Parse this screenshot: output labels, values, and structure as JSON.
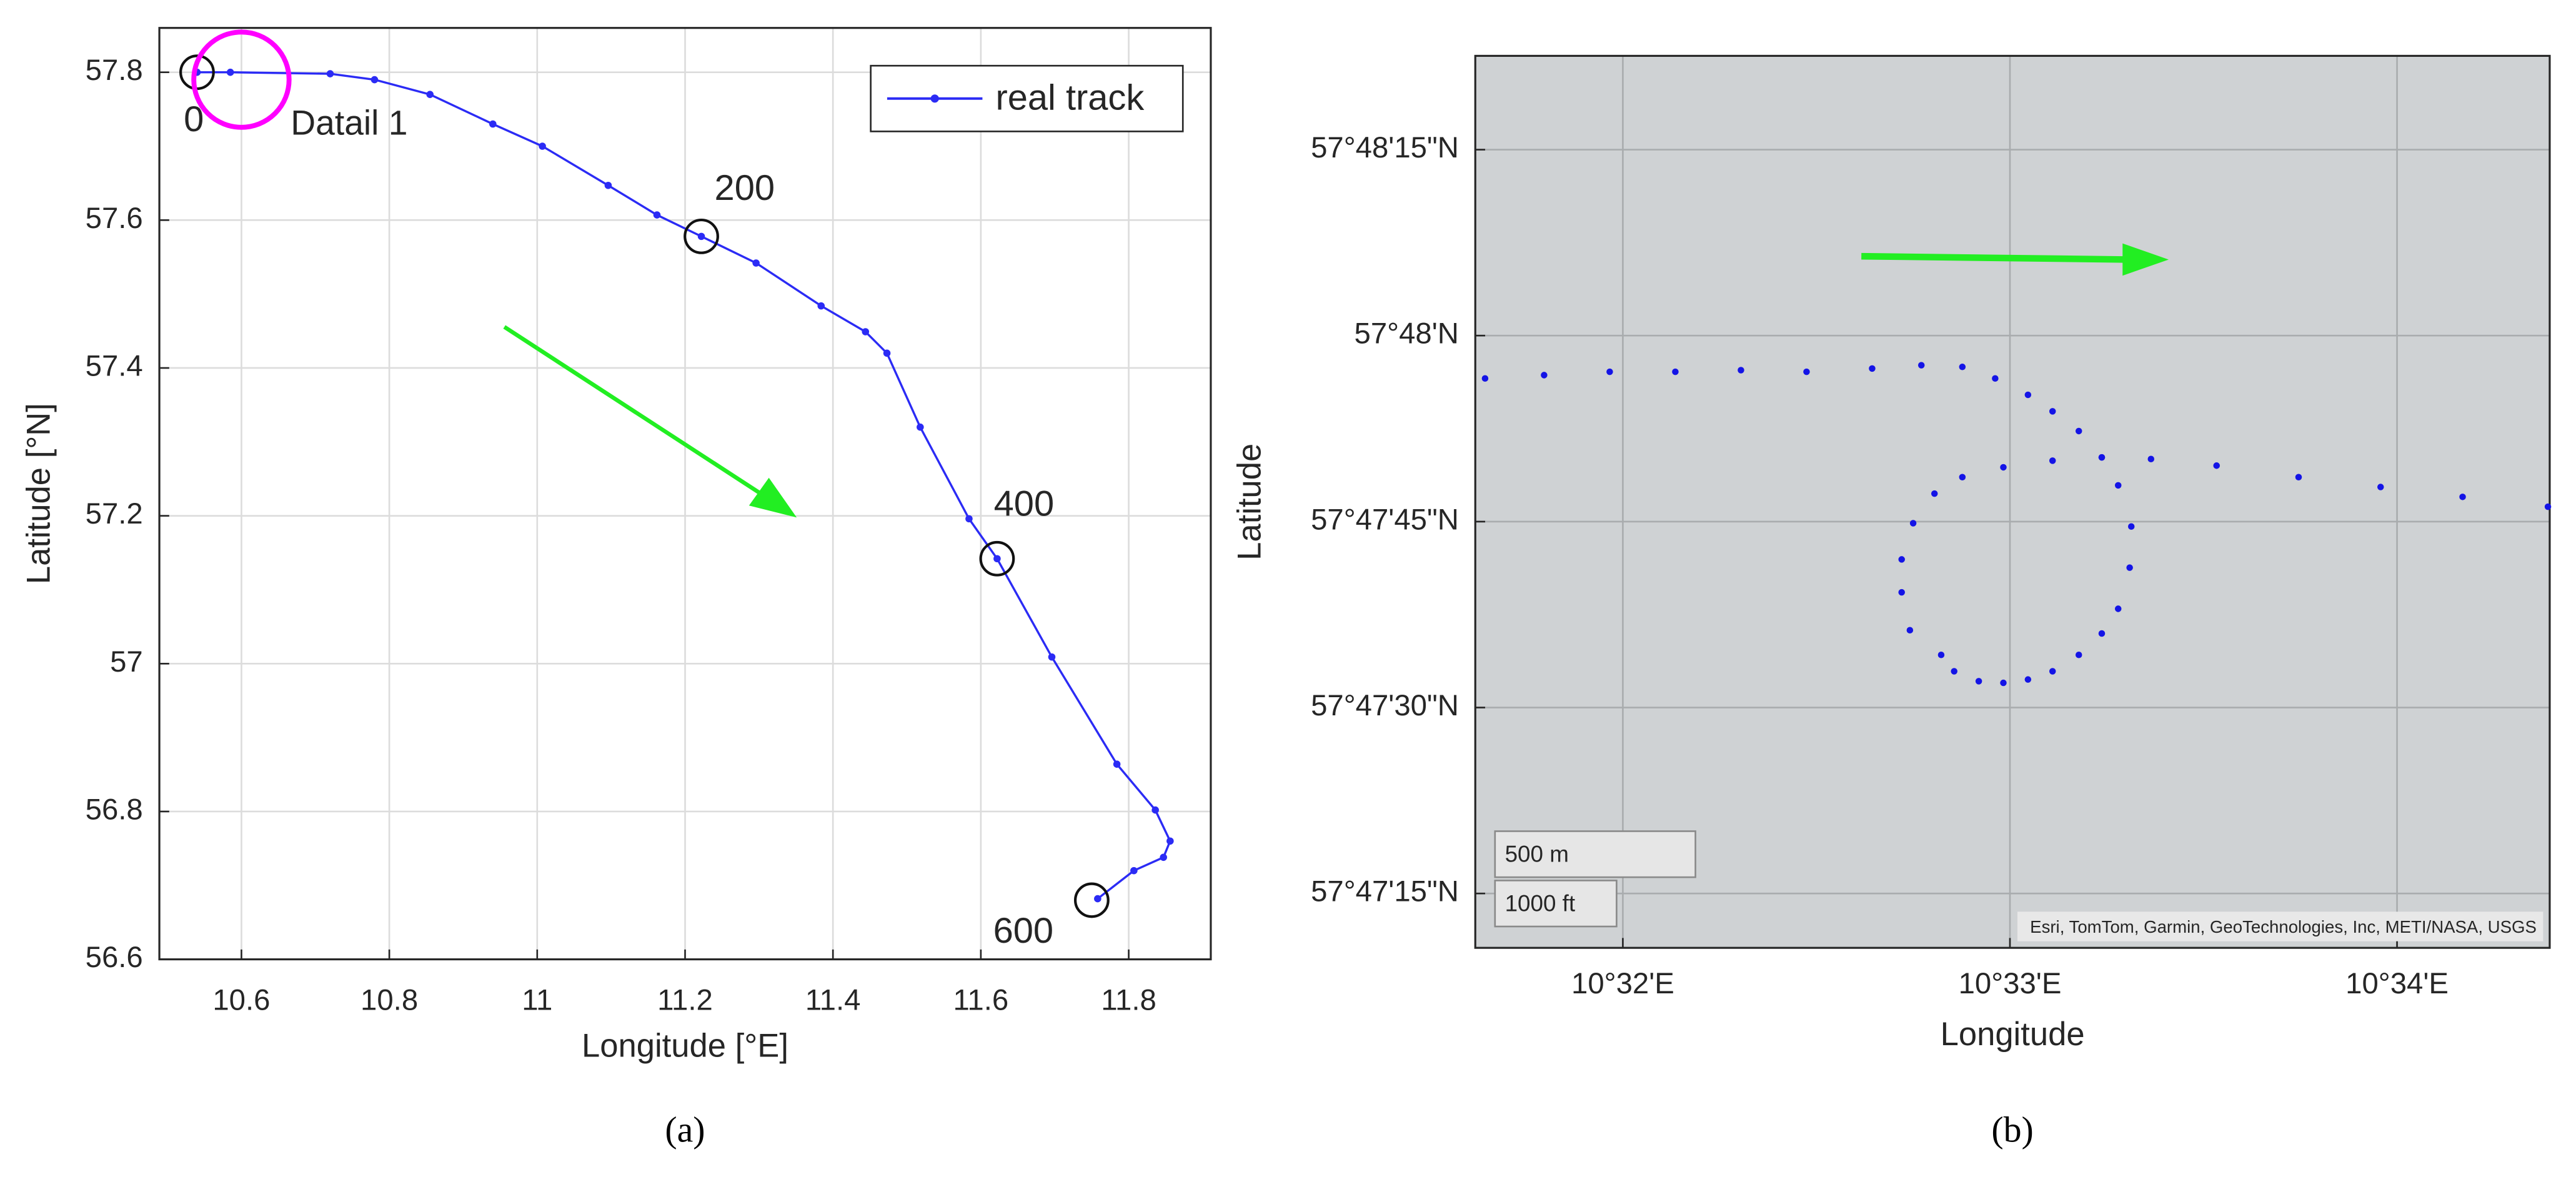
{
  "chart_data": [
    {
      "type": "line",
      "caption": "(a)",
      "xlabel": "Longitude [°E]",
      "ylabel": "Latitude [°N]",
      "xlim": [
        10.489,
        11.911
      ],
      "ylim": [
        56.6,
        57.86
      ],
      "xticks": [
        10.6,
        10.8,
        11,
        11.2,
        11.4,
        11.6,
        11.8
      ],
      "yticks": [
        56.6,
        56.8,
        57,
        57.2,
        57.4,
        57.6,
        57.8
      ],
      "grid": true,
      "background": "#ffffff",
      "legend": "upper right",
      "series": [
        {
          "name": "real track",
          "color": "#2b2bf5",
          "x": [
            10.54,
            10.585,
            10.72,
            10.78,
            10.855,
            10.94,
            11.007,
            11.096,
            11.162,
            11.222,
            11.296,
            11.384,
            11.444,
            11.473,
            11.518,
            11.584,
            11.622,
            11.696,
            11.784,
            11.836,
            11.856,
            11.847,
            11.807,
            11.758
          ],
          "y": [
            57.8,
            57.8,
            57.798,
            57.79,
            57.77,
            57.73,
            57.7,
            57.647,
            57.607,
            57.578,
            57.542,
            57.484,
            57.449,
            57.42,
            57.32,
            57.196,
            57.142,
            57.009,
            56.864,
            56.802,
            56.76,
            56.738,
            56.72,
            56.682
          ]
        }
      ],
      "annotations": [
        {
          "text": "0",
          "x": 10.54,
          "y": 57.8
        },
        {
          "text": "200",
          "x": 11.222,
          "y": 57.578
        },
        {
          "text": "400",
          "x": 11.622,
          "y": 57.142
        },
        {
          "text": "600",
          "x": 11.75,
          "y": 56.68
        }
      ],
      "highlight": {
        "text": "Datail 1",
        "x": 10.6,
        "y": 57.79,
        "color": "#ff00ff"
      }
    },
    {
      "type": "scatter",
      "caption": "(b)",
      "xlabel": "Longitude",
      "ylabel": "Latitude",
      "xlim": [
        10.52698,
        10.57324
      ],
      "ylim": [
        57.786283,
        57.806268
      ],
      "xticks": [
        {
          "value": 10.5333333,
          "label": "10°32'E"
        },
        {
          "value": 10.55,
          "label": "10°33'E"
        },
        {
          "value": 10.5666667,
          "label": "10°34'E"
        }
      ],
      "yticks": [
        {
          "value": 57.7875,
          "label": "57°47'15\"N"
        },
        {
          "value": 57.7916667,
          "label": "57°47'30\"N"
        },
        {
          "value": 57.7958333,
          "label": "57°47'45\"N"
        },
        {
          "value": 57.8,
          "label": "57°48'N"
        },
        {
          "value": 57.8041667,
          "label": "57°48'15\"N"
        }
      ],
      "grid": true,
      "background": "#cfd2d4",
      "color": "#1414e6",
      "x": [
        10.527401,
        10.529943,
        10.532768,
        10.535593,
        10.538418,
        10.541243,
        10.544067,
        10.546186,
        10.547951,
        10.549364,
        10.550776,
        10.551835,
        10.552965,
        10.553954,
        10.55466,
        10.555225,
        10.555155,
        10.55466,
        10.553954,
        10.552965,
        10.551835,
        10.550776,
        10.549717,
        10.548658,
        10.547598,
        10.547039,
        10.545692,
        10.545338,
        10.545338,
        10.545833,
        10.546751,
        10.547951,
        10.549717,
        10.551835,
        10.553954,
        10.556073,
        10.558897,
        10.562428,
        10.565959,
        10.56949,
        10.573163
      ],
      "y": [
        57.799041,
        57.799115,
        57.799189,
        57.799189,
        57.799226,
        57.799189,
        57.799263,
        57.799336,
        57.799299,
        57.799041,
        57.798673,
        57.798304,
        57.797862,
        57.797272,
        57.796645,
        57.795723,
        57.794801,
        57.79388,
        57.793326,
        57.792847,
        57.792479,
        57.792295,
        57.79222,
        57.792257,
        57.792479,
        57.792847,
        57.7934,
        57.794248,
        57.794986,
        57.795797,
        57.79646,
        57.796829,
        57.79705,
        57.797198,
        57.797272,
        57.797235,
        57.797087,
        57.796829,
        57.796608,
        57.796387,
        57.796166
      ],
      "scale_bar": [
        "500 m",
        "1000 ft"
      ],
      "attribution": "Esri, TomTom, Garmin, GeoTechnologies, Inc, METI/NASA, USGS"
    }
  ]
}
